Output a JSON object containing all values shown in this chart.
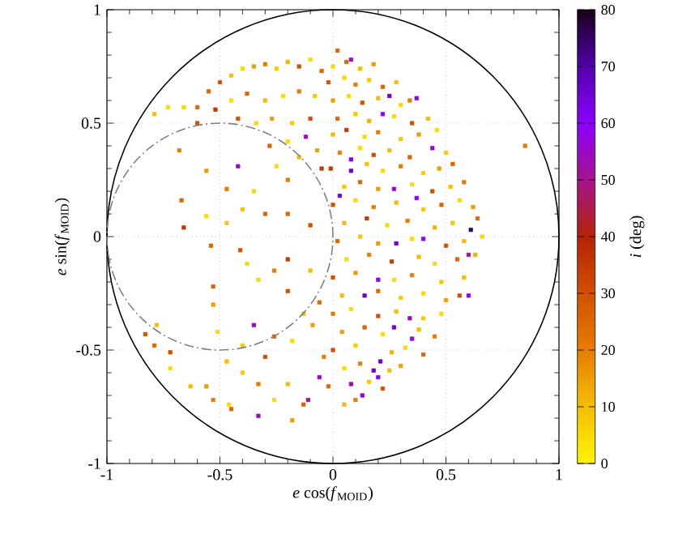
{
  "chart_data": {
    "type": "scatter",
    "xlabel": "*e* cos(*f*$_{MOID}$)",
    "ylabel": "*e* sin(*f*$_{MOID}$)",
    "clabel": "*i* (deg)",
    "xlim": [
      -1,
      1
    ],
    "ylim": [
      -1,
      1
    ],
    "xticks": [
      -1,
      -0.5,
      0,
      0.5,
      1
    ],
    "yticks": [
      -1,
      -0.5,
      0,
      0.5,
      1
    ],
    "clim": [
      0,
      80
    ],
    "cticks": [
      0,
      10,
      20,
      30,
      40,
      50,
      60,
      70,
      80
    ],
    "grid": true,
    "series": [
      {
        "marker": "square",
        "x": [
          -0.79,
          -0.73,
          -0.66,
          -0.6,
          -0.55,
          -0.5,
          -0.45,
          -0.4,
          -0.35,
          -0.3,
          -0.25,
          -0.2,
          -0.15,
          -0.1,
          -0.05,
          -0.52,
          -0.45,
          -0.38,
          -0.3,
          -0.22,
          -0.15,
          -0.08,
          -0.42,
          -0.34,
          -0.27,
          -0.18,
          -0.1,
          -0.12,
          -0.2,
          -0.28,
          -0.15,
          -0.07,
          -0.05,
          -0.25,
          -0.2,
          -0.68,
          -0.56,
          -0.67,
          -0.47,
          -0.42,
          -0.56,
          -0.66,
          -0.4,
          -0.3,
          -0.35,
          -0.47,
          -0.2,
          -0.1,
          -0.6,
          -0.54,
          -0.41,
          -0.78,
          -0.83,
          -0.79,
          -0.72,
          -0.72,
          -0.63,
          -0.56,
          -0.53,
          -0.46,
          -0.45,
          -0.33,
          -0.35,
          -0.47,
          -0.53,
          -0.53,
          -0.51,
          -0.4,
          -0.33,
          -0.26,
          -0.18,
          -0.2,
          -0.13,
          -0.06,
          -0.11,
          -0.33,
          -0.26,
          -0.2,
          -0.13,
          -0.26,
          -0.18,
          -0.09,
          -0.3,
          -0.4,
          -0.04,
          -0.06,
          -0.1,
          -0.2,
          -0.38,
          0.08,
          0.25,
          0.37,
          0.22,
          0.44,
          0.08,
          0.08,
          0.27,
          0.37,
          0.03,
          0.61,
          0.4,
          0.28,
          0.2,
          0.14,
          0.6,
          0.27,
          0.34,
          0.35,
          0.21,
          0.18,
          0.2,
          0.08,
          0.13,
          0.6,
          0.0,
          0.06,
          0.12,
          0.18,
          -0.02,
          0.05,
          0.1,
          0.16,
          0.22,
          0.28,
          0.0,
          0.07,
          0.13,
          0.2,
          0.3,
          0.34,
          0.02,
          0.1,
          0.16,
          0.27,
          0.35,
          0.42,
          0.0,
          0.06,
          0.14,
          0.2,
          0.3,
          0.38,
          0.46,
          0.03,
          0.12,
          0.18,
          0.25,
          0.34,
          0.5,
          -0.01,
          0.15,
          0.22,
          0.3,
          0.4,
          0.47,
          0.53,
          0.05,
          0.12,
          0.2,
          0.35,
          0.44,
          0.52,
          0.58,
          0.0,
          0.1,
          0.18,
          0.28,
          0.4,
          0.48,
          0.56,
          0.62,
          0.05,
          0.15,
          0.24,
          0.33,
          0.45,
          0.53,
          0.64,
          0.02,
          0.12,
          0.2,
          0.35,
          0.5,
          0.58,
          0.66,
          0.06,
          0.16,
          0.26,
          0.38,
          0.45,
          0.55,
          0.63,
          0.0,
          0.1,
          0.27,
          0.35,
          0.48,
          0.58,
          0.04,
          0.2,
          0.3,
          0.4,
          0.5,
          0.56,
          0.0,
          0.08,
          0.2,
          0.28,
          0.4,
          0.48,
          0.04,
          0.14,
          0.22,
          0.38,
          0.45,
          0.0,
          0.1,
          0.26,
          0.32,
          0.4,
          0.05,
          0.12,
          0.25,
          0.3,
          -0.02,
          0.16,
          0.22,
          0.05,
          0.1,
          0.85,
          0.02
        ],
        "values": [
          0.54,
          0.57,
          0.57,
          0.57,
          0.64,
          0.68,
          0.71,
          0.74,
          0.75,
          0.76,
          0.74,
          0.77,
          0.75,
          0.78,
          0.73,
          0.56,
          0.6,
          0.63,
          0.6,
          0.62,
          0.64,
          0.62,
          0.52,
          0.5,
          0.52,
          0.5,
          0.52,
          0.44,
          0.42,
          0.4,
          0.35,
          0.38,
          0.3,
          0.31,
          0.25,
          0.38,
          0.29,
          0.16,
          0.21,
          0.31,
          0.09,
          0.04,
          0.12,
          0.1,
          0.2,
          0.06,
          0.1,
          0.05,
          0.5,
          -0.04,
          -0.06,
          -0.39,
          -0.43,
          -0.48,
          -0.51,
          -0.58,
          -0.66,
          -0.66,
          -0.72,
          -0.74,
          -0.76,
          -0.79,
          -0.39,
          -0.55,
          -0.22,
          -0.3,
          -0.42,
          -0.6,
          -0.65,
          -0.72,
          -0.81,
          -0.65,
          -0.74,
          -0.62,
          -0.72,
          -0.19,
          -0.15,
          -0.24,
          -0.34,
          -0.44,
          -0.46,
          -0.39,
          -0.53,
          -0.48,
          -0.53,
          -0.29,
          -0.15,
          -0.1,
          -0.12,
          0.78,
          0.62,
          0.61,
          0.54,
          0.39,
          0.34,
          0.29,
          0.21,
          0.17,
          0.18,
          0.03,
          -0.01,
          -0.03,
          -0.19,
          -0.26,
          -0.26,
          -0.4,
          -0.36,
          -0.45,
          -0.55,
          -0.59,
          -0.62,
          -0.65,
          -0.7,
          -0.08,
          0.75,
          0.77,
          0.74,
          0.76,
          0.68,
          0.7,
          0.67,
          0.69,
          0.66,
          0.68,
          0.6,
          0.62,
          0.59,
          0.61,
          0.58,
          0.6,
          0.52,
          0.54,
          0.51,
          0.53,
          0.5,
          0.52,
          0.45,
          0.47,
          0.44,
          0.46,
          0.43,
          0.45,
          0.47,
          0.37,
          0.39,
          0.36,
          0.38,
          0.35,
          0.37,
          0.3,
          0.32,
          0.29,
          0.31,
          0.28,
          0.3,
          0.32,
          0.22,
          0.24,
          0.21,
          0.23,
          0.2,
          0.22,
          0.24,
          0.14,
          0.16,
          0.13,
          0.15,
          0.12,
          0.14,
          0.16,
          0.13,
          0.06,
          0.08,
          0.05,
          0.07,
          0.04,
          0.06,
          0.08,
          -0.02,
          0,
          -0.03,
          -0.01,
          -0.04,
          -0.02,
          0,
          -0.1,
          -0.08,
          -0.11,
          -0.09,
          -0.12,
          -0.1,
          -0.08,
          -0.18,
          -0.16,
          -0.19,
          -0.17,
          -0.2,
          -0.18,
          -0.26,
          -0.24,
          -0.27,
          -0.25,
          -0.28,
          -0.26,
          -0.34,
          -0.32,
          -0.35,
          -0.33,
          -0.36,
          -0.34,
          -0.42,
          -0.4,
          -0.43,
          -0.41,
          -0.44,
          -0.5,
          -0.48,
          -0.51,
          -0.49,
          -0.52,
          -0.58,
          -0.56,
          -0.59,
          -0.57,
          -0.66,
          -0.64,
          -0.67,
          -0.74,
          -0.72,
          0.4,
          0.82
        ],
        "cvalues": [
          10,
          5,
          5,
          25,
          25,
          30,
          10,
          5,
          15,
          20,
          8,
          12,
          30,
          5,
          25,
          35,
          5,
          25,
          10,
          5,
          20,
          8,
          30,
          5,
          15,
          8,
          30,
          55,
          5,
          25,
          10,
          15,
          35,
          5,
          20,
          20,
          15,
          25,
          20,
          55,
          5,
          35,
          10,
          25,
          5,
          8,
          25,
          30,
          30,
          25,
          30,
          10,
          30,
          25,
          30,
          5,
          10,
          15,
          20,
          5,
          25,
          55,
          55,
          10,
          25,
          15,
          5,
          8,
          20,
          5,
          15,
          10,
          25,
          55,
          50,
          5,
          20,
          30,
          10,
          25,
          5,
          15,
          30,
          8,
          20,
          25,
          10,
          35,
          5,
          55,
          65,
          60,
          60,
          55,
          60,
          65,
          55,
          60,
          65,
          75,
          60,
          65,
          60,
          65,
          60,
          65,
          55,
          60,
          65,
          65,
          60,
          55,
          60,
          50,
          5,
          25,
          10,
          15,
          30,
          5,
          20,
          8,
          25,
          10,
          15,
          5,
          30,
          10,
          5,
          20,
          25,
          8,
          12,
          5,
          30,
          10,
          10,
          35,
          5,
          20,
          8,
          15,
          5,
          20,
          5,
          30,
          10,
          25,
          8,
          35,
          10,
          5,
          20,
          8,
          15,
          25,
          8,
          25,
          15,
          5,
          30,
          10,
          20,
          30,
          5,
          20,
          10,
          8,
          25,
          5,
          15,
          10,
          35,
          5,
          20,
          12,
          8,
          25,
          25,
          8,
          15,
          5,
          30,
          10,
          5,
          5,
          20,
          35,
          10,
          5,
          25,
          12,
          30,
          15,
          5,
          20,
          8,
          10,
          10,
          25,
          8,
          5,
          15,
          30,
          20,
          5,
          30,
          10,
          8,
          5,
          15,
          25,
          5,
          10,
          20,
          30,
          8,
          12,
          5,
          25,
          5,
          20,
          10,
          15,
          25,
          8,
          30,
          10,
          20,
          20,
          25
        ]
      }
    ]
  }
}
